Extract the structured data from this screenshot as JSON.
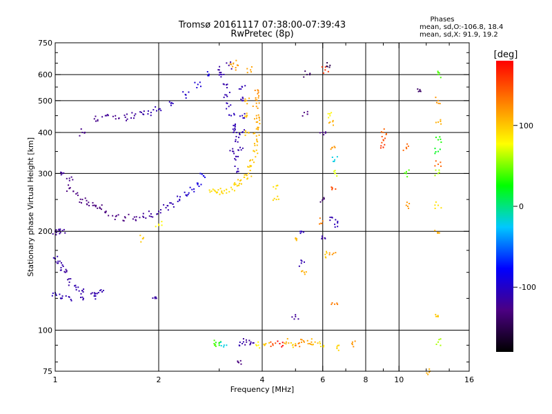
{
  "chart_data": {
    "type": "scatter",
    "title": "Tromsø 20161117 07:38:00-07:39:43",
    "subtitle": "RwPretec (8p)",
    "xlabel": "Frequency [MHz]",
    "ylabel": "Stationary phase Virtual Height [km]",
    "x_scale": "log",
    "y_scale": "log",
    "xlim": [
      1,
      16
    ],
    "ylim": [
      75,
      750
    ],
    "x_ticks": [
      1,
      2,
      4,
      6,
      8,
      10,
      16
    ],
    "x_tick_labels": [
      "1",
      "2",
      "4",
      "6",
      "8",
      "10",
      "16"
    ],
    "x_minor_ticks": [
      3,
      5,
      7,
      9,
      12,
      14
    ],
    "y_ticks": [
      75,
      100,
      200,
      300,
      400,
      500,
      600,
      750
    ],
    "y_tick_labels": [
      "75",
      "100",
      "200",
      "300",
      "400",
      "500",
      "600",
      "750"
    ],
    "y_minor_ticks": [
      80,
      90,
      125,
      150,
      175,
      250,
      350,
      450,
      550,
      650,
      700
    ],
    "grid": true,
    "grid_x": [
      2,
      4,
      6,
      8,
      10
    ],
    "grid_y": [
      100,
      200,
      300,
      400,
      500,
      600
    ],
    "legend": {
      "title": "Phases",
      "lines": [
        "mean, sd,O:-106.8, 18.4",
        "mean, sd,X:  91.9, 19.2"
      ]
    },
    "colorbar": {
      "label": "[deg]",
      "range": [
        -180,
        180
      ],
      "ticks": [
        100,
        0,
        -100
      ],
      "tick_labels": [
        "100",
        "0",
        "-100"
      ],
      "colors": [
        "#000000",
        "#4b0082",
        "#0000ff",
        "#00c8ff",
        "#00ff00",
        "#ffff00",
        "#ff8000",
        "#ff0000"
      ]
    },
    "series": [
      {
        "role": "O-mode trace",
        "points": [
          [
            1.0,
            200,
            -120
          ],
          [
            1.02,
            200,
            -115
          ],
          [
            1.05,
            201,
            -118
          ],
          [
            1.0,
            165,
            -110
          ],
          [
            1.02,
            160,
            -115
          ],
          [
            1.04,
            155,
            -112
          ],
          [
            1.07,
            150,
            -118
          ],
          [
            1.1,
            140,
            -115
          ],
          [
            1.15,
            135,
            -110
          ],
          [
            1.2,
            132,
            -112
          ],
          [
            1.3,
            130,
            -115
          ],
          [
            1.35,
            132,
            -110
          ],
          [
            1.0,
            130,
            -105
          ],
          [
            1.05,
            127,
            -108
          ],
          [
            1.1,
            126,
            -110
          ],
          [
            1.2,
            126,
            -112
          ],
          [
            1.3,
            127,
            -108
          ],
          [
            1.05,
            300,
            -120
          ],
          [
            1.1,
            290,
            -125
          ],
          [
            1.1,
            270,
            -130
          ],
          [
            1.15,
            260,
            -128
          ],
          [
            1.2,
            250,
            -130
          ],
          [
            1.25,
            245,
            -128
          ],
          [
            1.3,
            240,
            -130
          ],
          [
            1.35,
            235,
            -132
          ],
          [
            1.4,
            228,
            -130
          ],
          [
            1.5,
            222,
            -128
          ],
          [
            1.6,
            220,
            -130
          ],
          [
            1.7,
            221,
            -125
          ],
          [
            1.8,
            222,
            -120
          ],
          [
            1.9,
            226,
            -118
          ],
          [
            2.0,
            230,
            -115
          ],
          [
            2.1,
            236,
            -112
          ],
          [
            2.2,
            242,
            -110
          ],
          [
            2.3,
            250,
            -105
          ],
          [
            2.4,
            258,
            -100
          ],
          [
            2.5,
            268,
            -95
          ],
          [
            2.6,
            280,
            -90
          ],
          [
            2.7,
            295,
            -85
          ],
          [
            1.2,
            400,
            -125
          ],
          [
            1.3,
            440,
            -125
          ],
          [
            1.4,
            450,
            -120
          ],
          [
            1.5,
            440,
            -125
          ],
          [
            1.6,
            445,
            -120
          ],
          [
            1.7,
            450,
            -118
          ],
          [
            1.8,
            455,
            -115
          ],
          [
            1.9,
            460,
            -110
          ],
          [
            2.0,
            470,
            -108
          ],
          [
            2.2,
            490,
            -105
          ],
          [
            2.4,
            520,
            -100
          ],
          [
            2.6,
            560,
            -95
          ],
          [
            2.8,
            600,
            -90
          ],
          [
            3.0,
            620,
            -115
          ],
          [
            3.05,
            600,
            -110
          ],
          [
            3.1,
            560,
            -112
          ],
          [
            3.15,
            520,
            -110
          ],
          [
            3.2,
            480,
            -108
          ],
          [
            3.25,
            450,
            -105
          ],
          [
            3.3,
            420,
            -108
          ],
          [
            3.3,
            400,
            -110
          ],
          [
            3.35,
            380,
            -112
          ],
          [
            3.3,
            350,
            -115
          ],
          [
            3.35,
            330,
            -112
          ],
          [
            3.4,
            310,
            -110
          ],
          [
            3.5,
            550,
            -108
          ],
          [
            3.5,
            500,
            -110
          ],
          [
            3.5,
            450,
            -105
          ],
          [
            3.5,
            400,
            -108
          ],
          [
            3.45,
            360,
            -112
          ],
          [
            3.2,
            640,
            -118
          ]
        ]
      },
      {
        "role": "X-mode trace",
        "points": [
          [
            2.85,
            265,
            90
          ],
          [
            2.95,
            262,
            92
          ],
          [
            3.05,
            265,
            95
          ],
          [
            3.15,
            268,
            90
          ],
          [
            3.25,
            272,
            92
          ],
          [
            3.35,
            278,
            95
          ],
          [
            3.45,
            285,
            98
          ],
          [
            3.55,
            292,
            95
          ],
          [
            3.65,
            300,
            100
          ],
          [
            3.7,
            315,
            98
          ],
          [
            3.75,
            330,
            102
          ],
          [
            3.8,
            350,
            100
          ],
          [
            3.8,
            370,
            105
          ],
          [
            3.85,
            390,
            108
          ],
          [
            3.85,
            410,
            110
          ],
          [
            3.85,
            430,
            112
          ],
          [
            3.85,
            450,
            115
          ],
          [
            3.85,
            480,
            118
          ],
          [
            3.9,
            510,
            120
          ],
          [
            3.9,
            530,
            125
          ],
          [
            3.6,
            450,
            105
          ],
          [
            3.6,
            500,
            110
          ],
          [
            3.65,
            400,
            102
          ],
          [
            3.7,
            620,
            115
          ],
          [
            3.3,
            650,
            115
          ],
          [
            3.35,
            630,
            120
          ]
        ]
      },
      {
        "role": "E-region echoes",
        "points": [
          [
            2.9,
            91,
            40
          ],
          [
            3.0,
            90,
            30
          ],
          [
            3.1,
            90,
            -20
          ],
          [
            3.5,
            91,
            -110
          ],
          [
            3.6,
            92,
            -120
          ],
          [
            3.7,
            91,
            -115
          ],
          [
            3.9,
            90,
            80
          ],
          [
            4.1,
            91,
            100
          ],
          [
            4.3,
            90,
            150
          ],
          [
            4.5,
            91,
            180
          ],
          [
            4.7,
            92,
            110
          ],
          [
            4.9,
            90,
            95
          ],
          [
            5.1,
            91,
            130
          ],
          [
            5.3,
            92,
            120
          ],
          [
            5.5,
            91,
            115
          ],
          [
            5.7,
            92,
            105
          ],
          [
            5.9,
            91,
            90
          ],
          [
            6.6,
            88,
            95
          ],
          [
            7.3,
            91,
            120
          ],
          [
            3.4,
            80,
            -130
          ],
          [
            12.3,
            75,
            110
          ]
        ]
      },
      {
        "role": "scattered echoes",
        "points": [
          [
            2.0,
            210,
            80
          ],
          [
            1.8,
            190,
            100
          ],
          [
            1.95,
            126,
            -115
          ],
          [
            4.4,
            275,
            90
          ],
          [
            4.4,
            250,
            95
          ],
          [
            5.0,
            110,
            -120
          ],
          [
            5.0,
            190,
            105
          ],
          [
            5.2,
            160,
            -110
          ],
          [
            5.2,
            200,
            -105
          ],
          [
            5.3,
            150,
            110
          ],
          [
            5.4,
            600,
            -140
          ],
          [
            6.0,
            400,
            -125
          ],
          [
            6.0,
            250,
            -140
          ],
          [
            6.0,
            215,
            130
          ],
          [
            6.1,
            190,
            -115
          ],
          [
            6.1,
            170,
            100
          ],
          [
            6.3,
            450,
            80
          ],
          [
            6.3,
            430,
            110
          ],
          [
            6.4,
            360,
            120
          ],
          [
            6.5,
            330,
            -20
          ],
          [
            6.5,
            300,
            70
          ],
          [
            6.4,
            270,
            150
          ],
          [
            6.4,
            220,
            -110
          ],
          [
            6.5,
            210,
            -105
          ],
          [
            6.4,
            170,
            120
          ],
          [
            6.5,
            120,
            130
          ],
          [
            6.1,
            620,
            160
          ],
          [
            6.3,
            640,
            -150
          ],
          [
            9.0,
            400,
            140
          ],
          [
            9.0,
            380,
            150
          ],
          [
            9.0,
            360,
            160
          ],
          [
            10.5,
            360,
            140
          ],
          [
            10.5,
            300,
            40
          ],
          [
            10.5,
            240,
            120
          ],
          [
            11.5,
            540,
            -140
          ],
          [
            13.0,
            600,
            40
          ],
          [
            13.0,
            430,
            110
          ],
          [
            13.0,
            350,
            20
          ],
          [
            13.0,
            320,
            140
          ],
          [
            13.0,
            300,
            60
          ],
          [
            13.0,
            240,
            90
          ],
          [
            13.0,
            198,
            110
          ],
          [
            13.0,
            110,
            100
          ],
          [
            13.0,
            92,
            60
          ],
          [
            13.0,
            500,
            120
          ],
          [
            13.0,
            380,
            30
          ],
          [
            5.3,
            460,
            -130
          ]
        ]
      }
    ]
  }
}
